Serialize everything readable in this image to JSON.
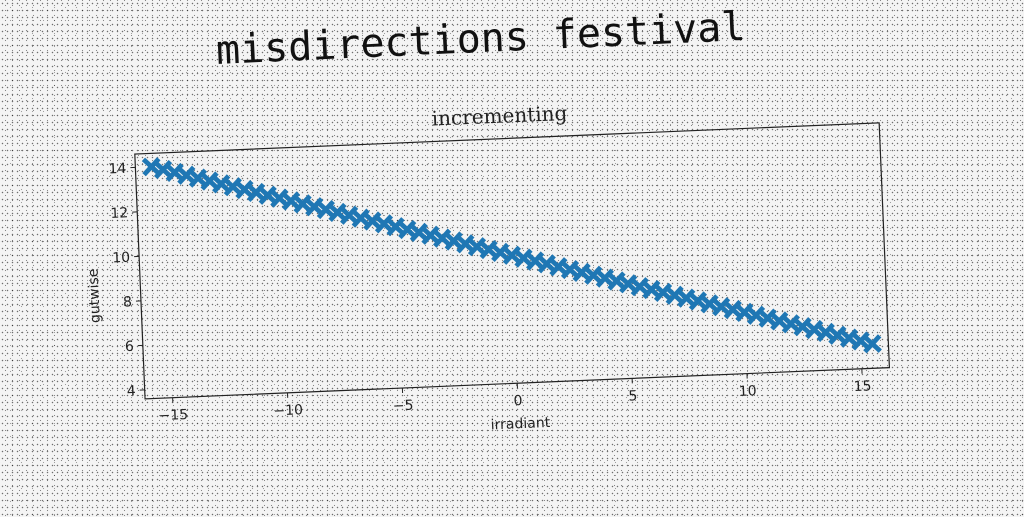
{
  "page": {
    "title": "misdirections festival"
  },
  "chart_data": {
    "type": "scatter",
    "title": "incrementing",
    "xlabel": "irradiant",
    "ylabel": "gutwise",
    "xlim": [
      -16.2,
      16.2
    ],
    "ylim": [
      3.6,
      14.6
    ],
    "xticks": [
      -15,
      -10,
      -5,
      0,
      5,
      10,
      15
    ],
    "xtick_labels": [
      "−15",
      "−10",
      "−5",
      "0",
      "5",
      "10",
      "15"
    ],
    "yticks": [
      4,
      6,
      8,
      10,
      12,
      14
    ],
    "ytick_labels": [
      "4",
      "6",
      "8",
      "10",
      "12",
      "14"
    ],
    "marker": "X",
    "color": "#1f77b4",
    "grid": false,
    "series": [
      {
        "x": [
          -15.5,
          -15.0,
          -14.5,
          -14.0,
          -13.5,
          -13.0,
          -12.5,
          -12.0,
          -11.5,
          -11.0,
          -10.5,
          -10.0,
          -9.5,
          -9.0,
          -8.5,
          -8.0,
          -7.5,
          -7.0,
          -6.5,
          -6.0,
          -5.5,
          -5.0,
          -4.5,
          -4.0,
          -3.5,
          -3.0,
          -2.5,
          -2.0,
          -1.5,
          -1.0,
          -0.5,
          0.0,
          0.5,
          1.0,
          1.5,
          2.0,
          2.5,
          3.0,
          3.5,
          4.0,
          4.5,
          5.0,
          5.5,
          6.0,
          6.5,
          7.0,
          7.5,
          8.0,
          8.5,
          9.0,
          9.5,
          10.0,
          10.5,
          11.0,
          11.5,
          12.0,
          12.5,
          13.0,
          13.5,
          14.0,
          14.5,
          15.0,
          15.5
        ],
        "y": [
          14.0,
          13.85,
          13.7,
          13.55,
          13.4,
          13.25,
          13.1,
          12.95,
          12.8,
          12.65,
          12.5,
          12.35,
          12.2,
          12.05,
          11.9,
          11.75,
          11.6,
          11.45,
          11.3,
          11.15,
          11.0,
          10.85,
          10.7,
          10.55,
          10.4,
          10.25,
          10.1,
          9.95,
          9.8,
          9.65,
          9.5,
          9.35,
          9.2,
          9.05,
          8.9,
          8.75,
          8.6,
          8.45,
          8.3,
          8.15,
          8.0,
          7.85,
          7.7,
          7.55,
          7.4,
          7.25,
          7.1,
          6.95,
          6.8,
          6.65,
          6.5,
          6.35,
          6.2,
          6.05,
          5.9,
          5.75,
          5.6,
          5.45,
          5.3,
          5.15,
          5.0,
          4.85,
          4.7
        ]
      }
    ]
  }
}
